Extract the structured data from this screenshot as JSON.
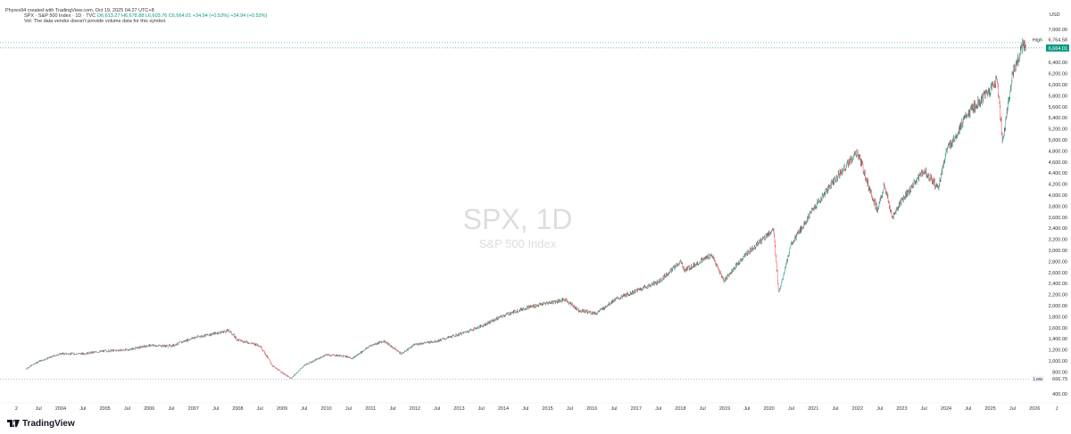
{
  "credit": "Phyres94 created with TradingView.com, Oct 19, 2025 04:27 UTC+8",
  "legend": {
    "symbol": "SPX · S&P 500 Index · 1D · TVC",
    "open": "O6,613.27",
    "high": "H6,678.88",
    "low": "L6,603.76",
    "close": "C6,664.01",
    "change": "+34.94 (+0.53%)",
    "change2": "+34.94 (+0.53%)",
    "volume_note": "Vol: The data vendor doesn't provide volume data for this symbol."
  },
  "watermark": {
    "title": "SPX, 1D",
    "subtitle": "S&P 500 Index"
  },
  "brand": "TradingView",
  "colors": {
    "up": "#089981",
    "down": "#f23645",
    "last_price_bg": "#089981"
  },
  "chart_data": {
    "type": "candlestick",
    "currency_label": "USD",
    "ylim": [
      400,
      7000
    ],
    "y_ticks": [
      "400.00",
      "800.00",
      "1,000.00",
      "1,200.00",
      "1,400.00",
      "1,600.00",
      "1,800.00",
      "2,000.00",
      "2,200.00",
      "2,400.00",
      "2,600.00",
      "2,800.00",
      "3,000.00",
      "3,200.00",
      "3,400.00",
      "3,600.00",
      "3,800.00",
      "4,000.00",
      "4,200.00",
      "4,400.00",
      "4,600.00",
      "4,800.00",
      "5,000.00",
      "5,200.00",
      "5,400.00",
      "5,600.00",
      "5,800.00",
      "6,000.00",
      "6,200.00",
      "6,400.00",
      "7,000.00"
    ],
    "x_ticks": [
      "2",
      "Jul",
      "2004",
      "Jul",
      "2005",
      "Jul",
      "2006",
      "Jul",
      "2007",
      "Jul",
      "2008",
      "Jul",
      "2009",
      "Jul",
      "2010",
      "Jul",
      "2011",
      "Jul",
      "2012",
      "Jul",
      "2013",
      "Jul",
      "2014",
      "Jul",
      "2015",
      "Jul",
      "2016",
      "Jul",
      "2017",
      "Jul",
      "2018",
      "Jul",
      "2019",
      "Jul",
      "2020",
      "Jul",
      "2021",
      "Jul",
      "2022",
      "Jul",
      "2023",
      "Jul",
      "2024",
      "Jul",
      "2025",
      "Jul",
      "2026",
      "J"
    ],
    "high_marker": {
      "label": "High",
      "value": "6,764.58"
    },
    "low_marker": {
      "label": "Low",
      "value": "666.79"
    },
    "last_price": "6,664.01",
    "series": [
      [
        2003.2,
        850
      ],
      [
        2003.5,
        990
      ],
      [
        2004.0,
        1130
      ],
      [
        2004.5,
        1130
      ],
      [
        2005.0,
        1180
      ],
      [
        2005.5,
        1200
      ],
      [
        2006.0,
        1280
      ],
      [
        2006.5,
        1270
      ],
      [
        2007.0,
        1420
      ],
      [
        2007.5,
        1500
      ],
      [
        2007.8,
        1550
      ],
      [
        2008.0,
        1380
      ],
      [
        2008.5,
        1280
      ],
      [
        2008.8,
        900
      ],
      [
        2009.2,
        680
      ],
      [
        2009.5,
        920
      ],
      [
        2010.0,
        1110
      ],
      [
        2010.4,
        1090
      ],
      [
        2010.6,
        1050
      ],
      [
        2011.0,
        1280
      ],
      [
        2011.3,
        1360
      ],
      [
        2011.7,
        1130
      ],
      [
        2012.0,
        1300
      ],
      [
        2012.5,
        1360
      ],
      [
        2013.0,
        1480
      ],
      [
        2013.5,
        1630
      ],
      [
        2014.0,
        1820
      ],
      [
        2014.5,
        1960
      ],
      [
        2015.0,
        2050
      ],
      [
        2015.4,
        2110
      ],
      [
        2015.7,
        1920
      ],
      [
        2016.1,
        1860
      ],
      [
        2016.5,
        2100
      ],
      [
        2017.0,
        2270
      ],
      [
        2017.5,
        2430
      ],
      [
        2018.0,
        2790
      ],
      [
        2018.1,
        2640
      ],
      [
        2018.7,
        2920
      ],
      [
        2018.98,
        2450
      ],
      [
        2019.5,
        2950
      ],
      [
        2020.1,
        3380
      ],
      [
        2020.22,
        2240
      ],
      [
        2020.5,
        3100
      ],
      [
        2021.0,
        3750
      ],
      [
        2021.5,
        4300
      ],
      [
        2022.0,
        4770
      ],
      [
        2022.45,
        3700
      ],
      [
        2022.6,
        4200
      ],
      [
        2022.78,
        3580
      ],
      [
        2023.0,
        3900
      ],
      [
        2023.5,
        4450
      ],
      [
        2023.82,
        4120
      ],
      [
        2024.0,
        4770
      ],
      [
        2024.5,
        5480
      ],
      [
        2025.0,
        5900
      ],
      [
        2025.15,
        6100
      ],
      [
        2025.28,
        4980
      ],
      [
        2025.5,
        6200
      ],
      [
        2025.75,
        6750
      ],
      [
        2025.8,
        6664
      ]
    ]
  }
}
